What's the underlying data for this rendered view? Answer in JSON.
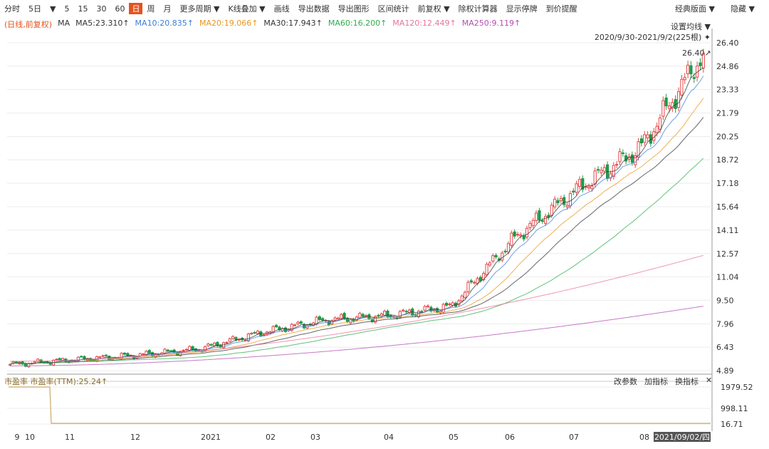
{
  "toolbar": {
    "items": [
      "分时",
      "5日",
      "▼",
      "5",
      "15",
      "30",
      "60",
      "日",
      "周",
      "月",
      "更多周期 ▼",
      "K线叠加 ▼",
      "画线",
      "导出数据",
      "导出图形",
      "区间统计",
      "前复权 ▼",
      "除权计算器",
      "显示停牌",
      "到价提醒"
    ],
    "active_index": 7,
    "right_items": [
      "经典版面 ▼",
      "隐藏 ▼"
    ]
  },
  "ma_legend": {
    "prefix": "(日线,前复权)",
    "items": [
      {
        "label": "MA",
        "color": "#333333"
      },
      {
        "label": "MA5:23.310↑",
        "color": "#333333"
      },
      {
        "label": "MA10:20.835↑",
        "color": "#3b7fd9"
      },
      {
        "label": "MA20:19.066↑",
        "color": "#e8961e"
      },
      {
        "label": "MA30:17.943↑",
        "color": "#333333"
      },
      {
        "label": "MA60:16.200↑",
        "color": "#2eae4e"
      },
      {
        "label": "MA120:12.449↑",
        "color": "#e8749a"
      },
      {
        "label": "MA250:9.119↑",
        "color": "#b24db5"
      }
    ]
  },
  "ma_setting": "设置均线 ▼",
  "range_info": "2020/9/30-2021/9/2(225根) ✦",
  "last_price_label": "26.40↗",
  "indicator": {
    "label": "市盈率 市盈率(TTM):25.24↑",
    "buttons": [
      "改参数",
      "加指标",
      "换指标",
      "✕"
    ],
    "yticks": [
      "1979.52",
      "998.11",
      "16.71"
    ]
  },
  "colors": {
    "up": "#e34a4a",
    "down": "#1f9b48",
    "grid": "#ececec"
  },
  "chart_data": [
    {
      "type": "candlestick",
      "title": "",
      "yticks": [
        4.89,
        6.43,
        7.96,
        9.5,
        11.04,
        12.57,
        14.11,
        15.64,
        17.18,
        18.72,
        20.25,
        21.79,
        23.33,
        24.86,
        26.4
      ],
      "ylim": [
        4.89,
        26.4
      ],
      "xticks": [
        "9",
        "10",
        "11",
        "12",
        "2021",
        "02",
        "03",
        "04",
        "05",
        "06",
        "07",
        "08"
      ],
      "cursor_date": "2021/09/02/四",
      "close_series_monthly": [
        {
          "month": "2020-10",
          "close": 5.3
        },
        {
          "month": "2020-11",
          "close": 5.6
        },
        {
          "month": "2020-12",
          "close": 5.9
        },
        {
          "month": "2021-01",
          "close": 6.3
        },
        {
          "month": "2021-02",
          "close": 7.4
        },
        {
          "month": "2021-03",
          "close": 8.2
        },
        {
          "month": "2021-04",
          "close": 8.5
        },
        {
          "month": "2021-05",
          "close": 9.1
        },
        {
          "month": "2021-06",
          "close": 13.6
        },
        {
          "month": "2021-07",
          "close": 16.8
        },
        {
          "month": "2021-08",
          "close": 19.5
        },
        {
          "month": "2021-09",
          "close": 25.7
        }
      ],
      "last_close": 25.7,
      "high": 26.4
    },
    {
      "type": "line",
      "title": "市盈率(TTM)",
      "ylim": [
        16.71,
        1979.52
      ],
      "description_values": [
        {
          "segment": "start",
          "value": 1979.52
        },
        {
          "segment": "rest",
          "value": 25.24
        }
      ]
    }
  ]
}
